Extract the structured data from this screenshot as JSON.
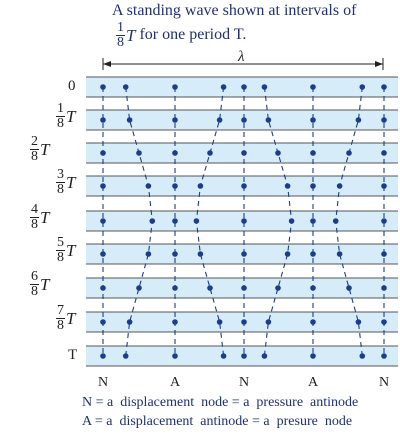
{
  "title": {
    "line1": "A standing wave shown at intervals of",
    "frac_num": "1",
    "frac_den": "8",
    "var": "T",
    "line2_rest": "for one period T."
  },
  "wavelength_symbol": "λ",
  "rows": [
    {
      "label": "0"
    },
    {
      "num": "1",
      "den": "8",
      "var": "T"
    },
    {
      "num": "2",
      "den": "8",
      "var": "T"
    },
    {
      "num": "3",
      "den": "8",
      "var": "T"
    },
    {
      "num": "4",
      "den": "8",
      "var": "T"
    },
    {
      "num": "5",
      "den": "8",
      "var": "T"
    },
    {
      "num": "6",
      "den": "8",
      "var": "T"
    },
    {
      "num": "7",
      "den": "8",
      "var": "T"
    },
    {
      "label": "T"
    }
  ],
  "bottom_labels": [
    "N",
    "A",
    "N",
    "A",
    "N"
  ],
  "legend": {
    "line1": "N = a  displacement  node = a  pressure  antinode",
    "line2": "A = a  displacement  antinode = a  presure  node"
  },
  "colors": {
    "band": "#d6ecf8",
    "line": "#555555",
    "dot": "#1a3d8f",
    "text": "#1f2f7a"
  }
}
